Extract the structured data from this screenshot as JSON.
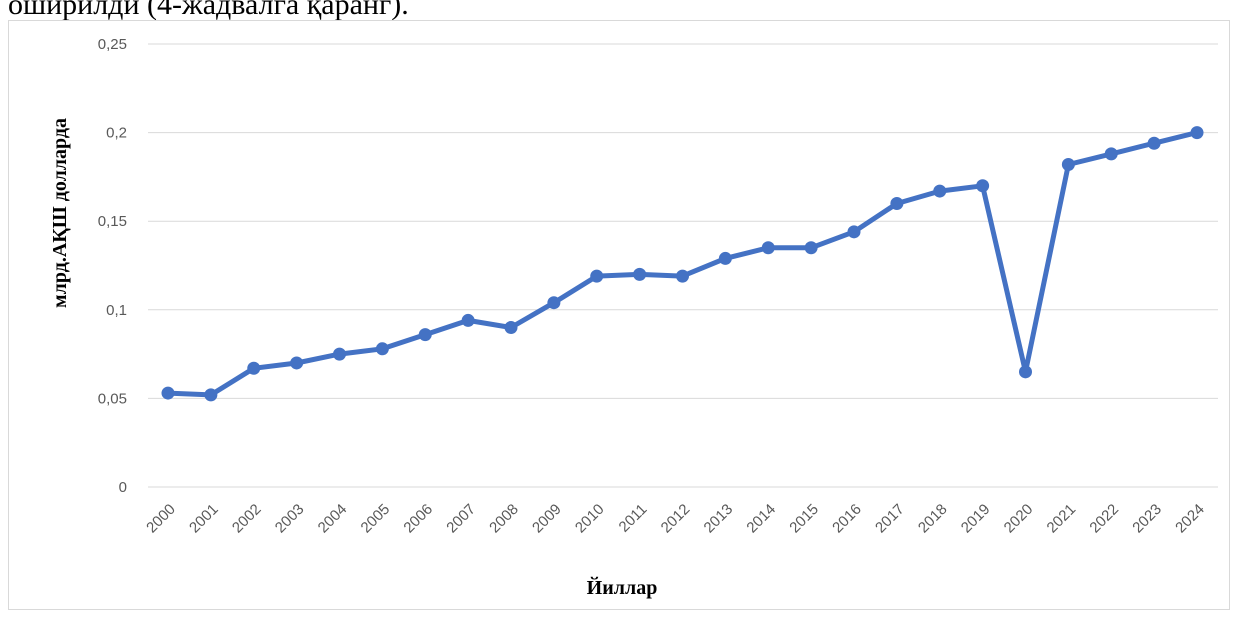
{
  "page": {
    "top_text": "оширилди (4-жадвалга қаранг)."
  },
  "chart_data": {
    "type": "line",
    "xlabel": "Йиллар",
    "ylabel": "млрд.АҚШ долларда",
    "ylim": [
      0,
      0.25
    ],
    "yticks": [
      0,
      0.05,
      0.1,
      0.15,
      0.2,
      0.25
    ],
    "ytick_labels": [
      "0",
      "0,05",
      "0,1",
      "0,15",
      "0,2",
      "0,25"
    ],
    "grid": true,
    "legend": "none",
    "categories": [
      "2000",
      "2001",
      "2002",
      "2003",
      "2004",
      "2005",
      "2006",
      "2007",
      "2008",
      "2009",
      "2010",
      "2011",
      "2012",
      "2013",
      "2014",
      "2015",
      "2016",
      "2017",
      "2018",
      "2019",
      "2020",
      "2021",
      "2022",
      "2023",
      "2024"
    ],
    "series": [
      {
        "values": [
          0.053,
          0.052,
          0.067,
          0.07,
          0.075,
          0.078,
          0.086,
          0.094,
          0.09,
          0.104,
          0.119,
          0.12,
          0.119,
          0.129,
          0.135,
          0.135,
          0.144,
          0.16,
          0.167,
          0.17,
          0.065,
          0.182,
          0.188,
          0.194,
          0.2
        ],
        "color": "#4472C4"
      }
    ]
  }
}
